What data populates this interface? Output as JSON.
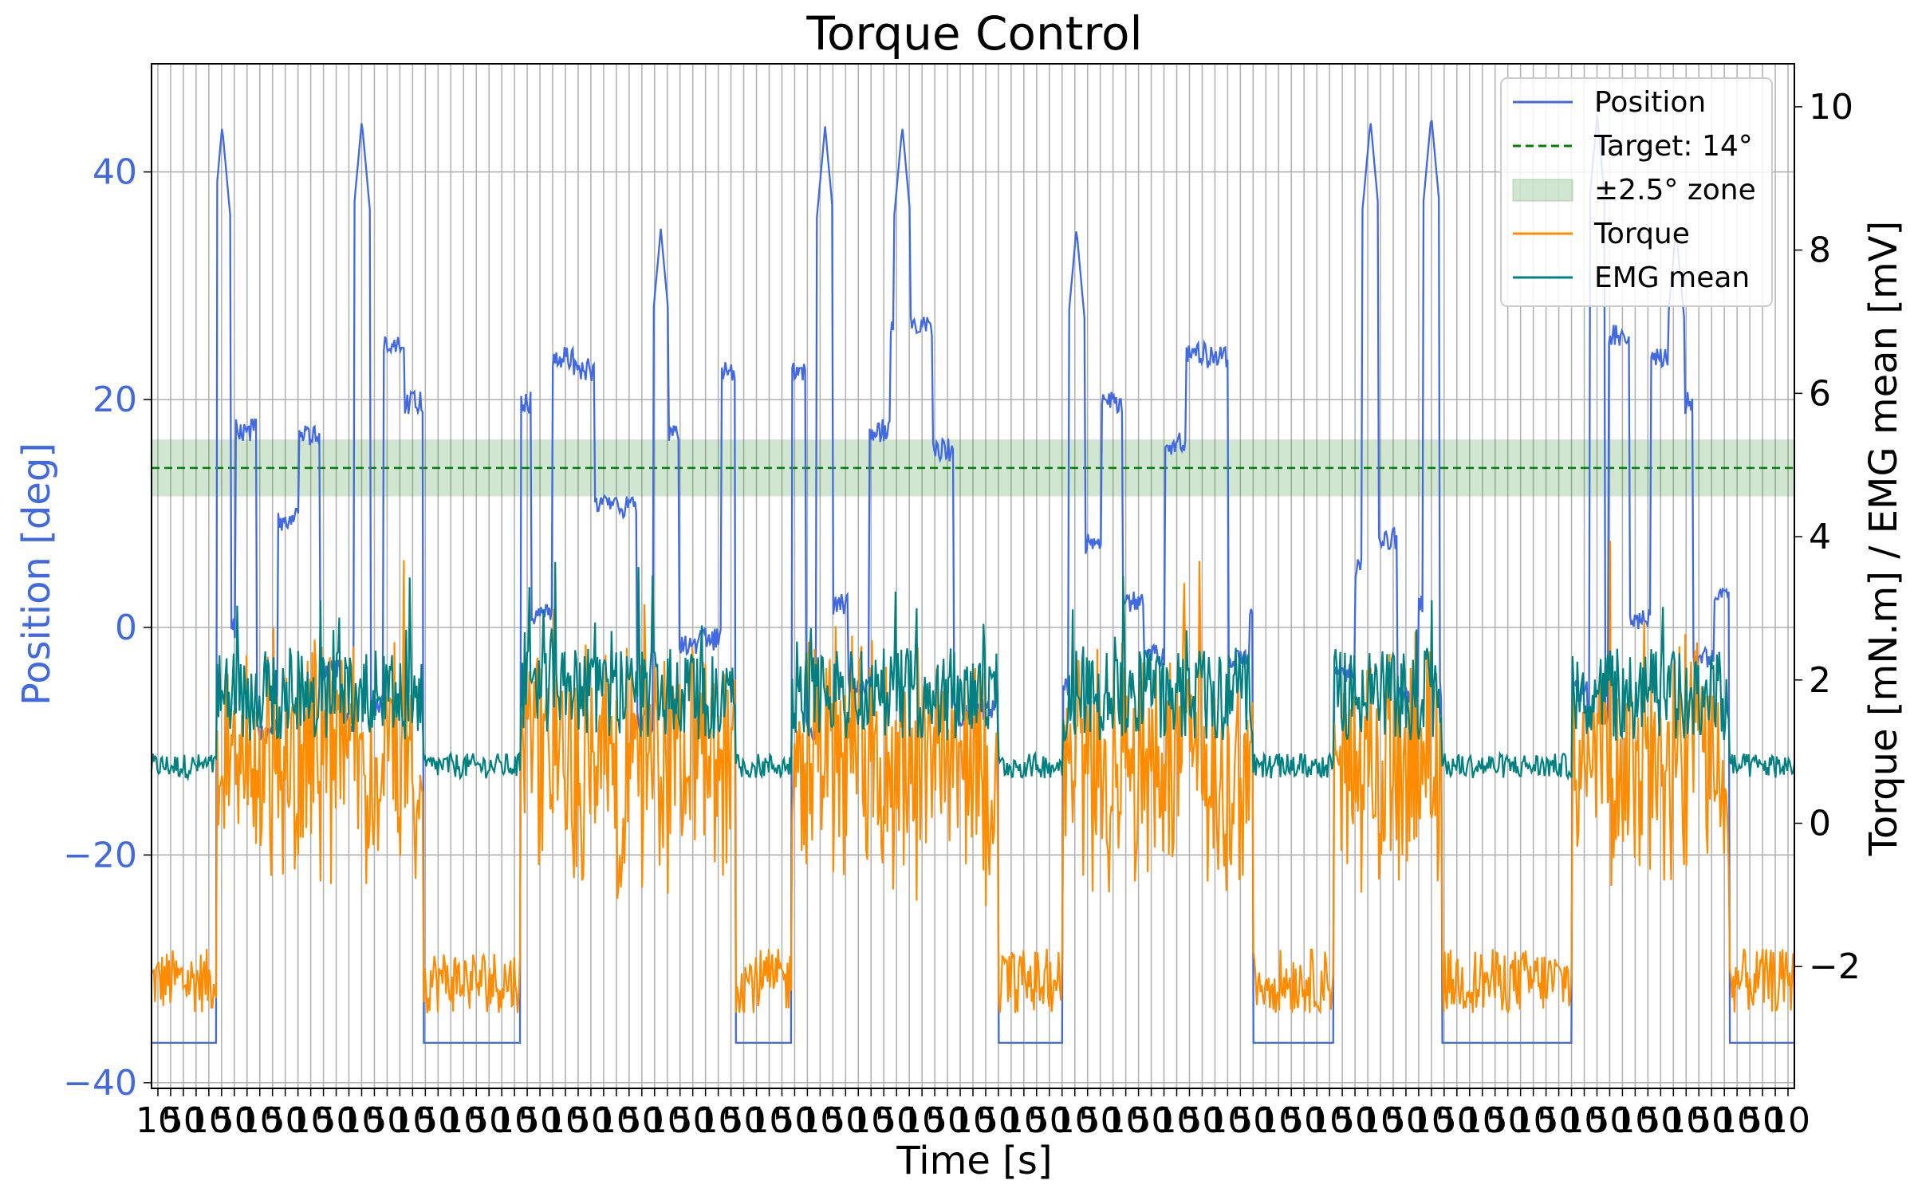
{
  "chart_data": {
    "type": "line",
    "title": "Torque Control",
    "xlabel": "Time [s]",
    "ylabel_left": "Position [deg]",
    "ylabel_right": "Torque [mN.m] / EMG mean [mV]",
    "x_tick_label_pair": [
      "10",
      "50"
    ],
    "xlim": [
      0,
      1
    ],
    "ylim_left": [
      -40.5,
      49.5
    ],
    "ylim_right": [
      -3.7,
      10.6
    ],
    "yticks_left": [
      -40,
      -20,
      0,
      20,
      40
    ],
    "yticks_right": [
      -2,
      0,
      2,
      4,
      6,
      8,
      10
    ],
    "grid": true,
    "legend_position": "top-right",
    "target": {
      "value": 14,
      "band": [
        11.5,
        16.5
      ]
    },
    "series": [
      {
        "name": "Position",
        "axis": "left",
        "color": "#4169E1",
        "active_segments": [
          [
            0.04,
            0.165
          ],
          [
            0.225,
            0.355
          ],
          [
            0.39,
            0.515
          ],
          [
            0.555,
            0.67
          ],
          [
            0.72,
            0.785
          ],
          [
            0.865,
            0.96
          ]
        ],
        "peaks": [
          [
            0.043,
            44
          ],
          [
            0.128,
            44.5
          ],
          [
            0.31,
            35
          ],
          [
            0.41,
            44
          ],
          [
            0.457,
            44
          ],
          [
            0.563,
            35
          ],
          [
            0.742,
            44.5
          ],
          [
            0.779,
            45
          ],
          [
            0.88,
            45
          ],
          [
            0.928,
            35
          ]
        ],
        "baseline": -36.5
      },
      {
        "name": "Torque",
        "axis": "right",
        "color": "#FF8C00",
        "active_mean": 1.5,
        "baseline": -2.2
      },
      {
        "name": "EMG mean",
        "axis": "right",
        "color": "#008080",
        "active_mean": 1.8,
        "baseline": 0.8
      }
    ],
    "legend_labels": [
      "Position",
      "Target: 14°",
      "±2.5° zone",
      "Torque",
      "EMG mean"
    ],
    "colors": {
      "target": "#008000",
      "zone": "#2E8B2E",
      "left_axis": "#4169E1"
    }
  }
}
